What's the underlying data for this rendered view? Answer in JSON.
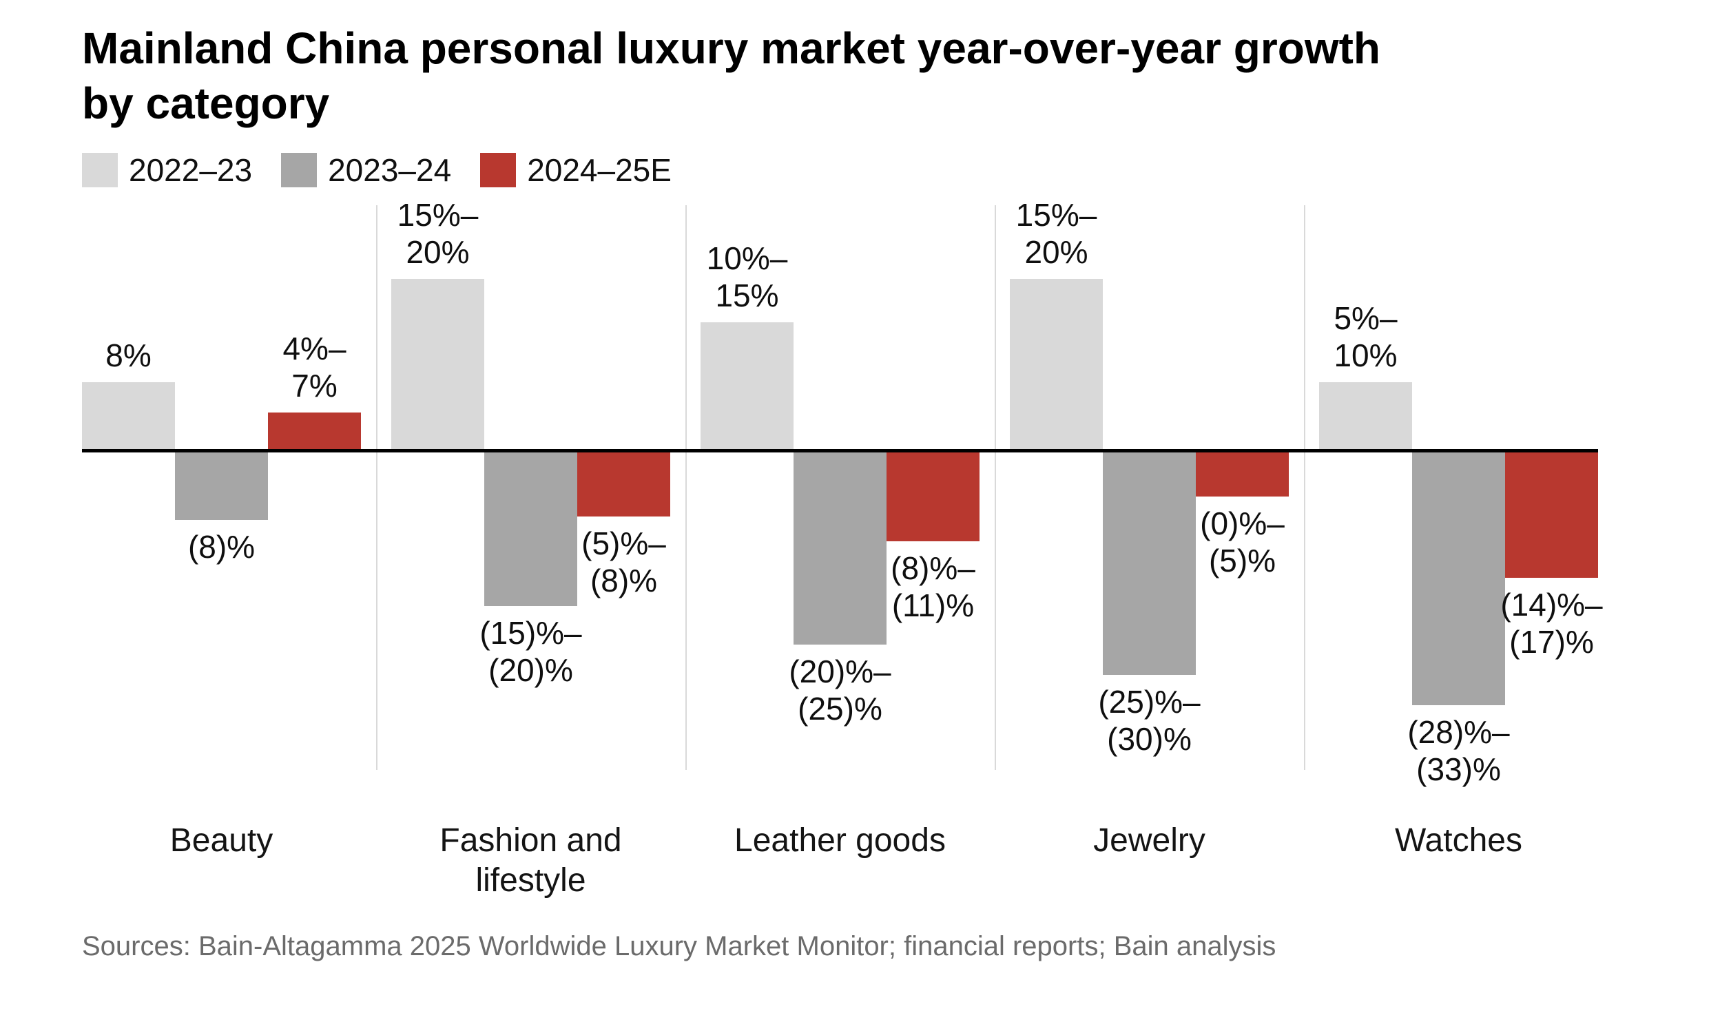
{
  "title": {
    "lines": [
      "Mainland China personal luxury market year-over-year growth",
      "by category"
    ]
  },
  "legend": {
    "items": [
      {
        "label": "2022–23",
        "color": "#d9d9d9"
      },
      {
        "label": "2023–24",
        "color": "#a6a6a6"
      },
      {
        "label": "2024–25E",
        "color": "#b8382f"
      }
    ]
  },
  "chart_data": {
    "type": "grouped_bar",
    "title": "Mainland China personal luxury market year-over-year growth by category",
    "unit": "percent year-over-year growth",
    "baseline": 0,
    "gridlines": false,
    "legend_position": "top-left",
    "axis": {
      "y_visible": false,
      "zero_line": true
    },
    "categories": [
      "Beauty",
      "Fashion and lifestyle",
      "Leather goods",
      "Jewelry",
      "Watches"
    ],
    "series_names": [
      "2022–23",
      "2023–24",
      "2024–25E"
    ],
    "groups": [
      {
        "category": "Beauty",
        "category_label": "Beauty",
        "bars": [
          {
            "series": "2022–23",
            "label": "8%",
            "value_low": 8,
            "value_high": 8,
            "plot_value": 8,
            "label_position": "above"
          },
          {
            "series": "2023–24",
            "label": "(8)%",
            "value_low": -8,
            "value_high": -8,
            "plot_value": -8,
            "label_position": "below"
          },
          {
            "series": "2024–25E",
            "label": "4%–\n7%",
            "value_low": 4,
            "value_high": 7,
            "plot_value": 4.5,
            "label_position": "above"
          }
        ]
      },
      {
        "category": "Fashion and lifestyle",
        "category_label": "Fashion and\nlifestyle",
        "bars": [
          {
            "series": "2022–23",
            "label": "15%–\n20%",
            "value_low": 15,
            "value_high": 20,
            "plot_value": 20,
            "label_position": "above"
          },
          {
            "series": "2023–24",
            "label": "(15)%–\n(20)%",
            "value_low": -20,
            "value_high": -15,
            "plot_value": -18,
            "label_position": "below"
          },
          {
            "series": "2024–25E",
            "label": "(5)%–\n(8)%",
            "value_low": -8,
            "value_high": -5,
            "plot_value": -7.6,
            "label_position": "below"
          }
        ]
      },
      {
        "category": "Leather goods",
        "category_label": "Leather goods",
        "bars": [
          {
            "series": "2022–23",
            "label": "10%–\n15%",
            "value_low": 10,
            "value_high": 15,
            "plot_value": 15,
            "label_position": "above"
          },
          {
            "series": "2023–24",
            "label": "(20)%–\n(25)%",
            "value_low": -25,
            "value_high": -20,
            "plot_value": -22.5,
            "label_position": "below"
          },
          {
            "series": "2024–25E",
            "label": "(8)%–\n(11)%",
            "value_low": -11,
            "value_high": -8,
            "plot_value": -10.5,
            "label_position": "below"
          }
        ]
      },
      {
        "category": "Jewelry",
        "category_label": "Jewelry",
        "bars": [
          {
            "series": "2022–23",
            "label": "15%–\n20%",
            "value_low": 15,
            "value_high": 20,
            "plot_value": 20,
            "label_position": "above"
          },
          {
            "series": "2023–24",
            "label": "(25)%–\n(30)%",
            "value_low": -30,
            "value_high": -25,
            "plot_value": -26,
            "label_position": "below"
          },
          {
            "series": "2024–25E",
            "label": "(0)%–\n(5)%",
            "value_low": -5,
            "value_high": 0,
            "plot_value": -5.3,
            "label_position": "below"
          }
        ]
      },
      {
        "category": "Watches",
        "category_label": "Watches",
        "bars": [
          {
            "series": "2022–23",
            "label": "5%–\n10%",
            "value_low": 5,
            "value_high": 10,
            "plot_value": 8,
            "label_position": "above"
          },
          {
            "series": "2023–24",
            "label": "(28)%–\n(33)%",
            "value_low": -33,
            "value_high": -28,
            "plot_value": -29.5,
            "label_position": "below"
          },
          {
            "series": "2024–25E",
            "label": "(14)%–\n(17)%",
            "value_low": -17,
            "value_high": -14,
            "plot_value": -14.7,
            "label_position": "below"
          }
        ]
      }
    ]
  },
  "source": {
    "text": "Sources: Bain-Altagamma 2025 Worldwide Luxury Market Monitor; financial reports; Bain analysis"
  }
}
